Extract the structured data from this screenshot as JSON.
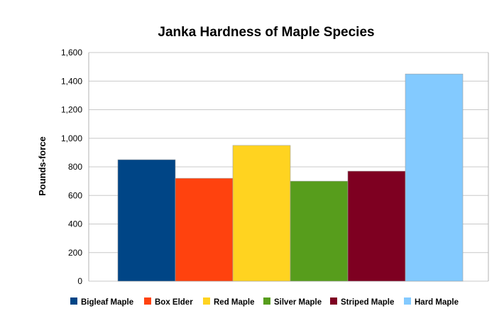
{
  "chart_data": {
    "type": "bar",
    "title": "Janka Hardness of Maple Species",
    "xlabel": "",
    "ylabel": "Pounds-force",
    "ylim": [
      0,
      1600
    ],
    "yticks": [
      0,
      200,
      400,
      600,
      800,
      1000,
      1200,
      1400,
      1600
    ],
    "ytick_labels": [
      "0",
      "200",
      "400",
      "600",
      "800",
      "1,000",
      "1,200",
      "1,400",
      "1,600"
    ],
    "grid": true,
    "legend_position": "bottom",
    "series": [
      {
        "name": "Bigleaf Maple",
        "value": 850,
        "color": "#004586"
      },
      {
        "name": "Box Elder",
        "value": 720,
        "color": "#ff420e"
      },
      {
        "name": "Red Maple",
        "value": 950,
        "color": "#ffd320"
      },
      {
        "name": "Silver Maple",
        "value": 700,
        "color": "#579d1c"
      },
      {
        "name": "Striped Maple",
        "value": 770,
        "color": "#7e0021"
      },
      {
        "name": "Hard Maple",
        "value": 1450,
        "color": "#83caff"
      }
    ]
  }
}
